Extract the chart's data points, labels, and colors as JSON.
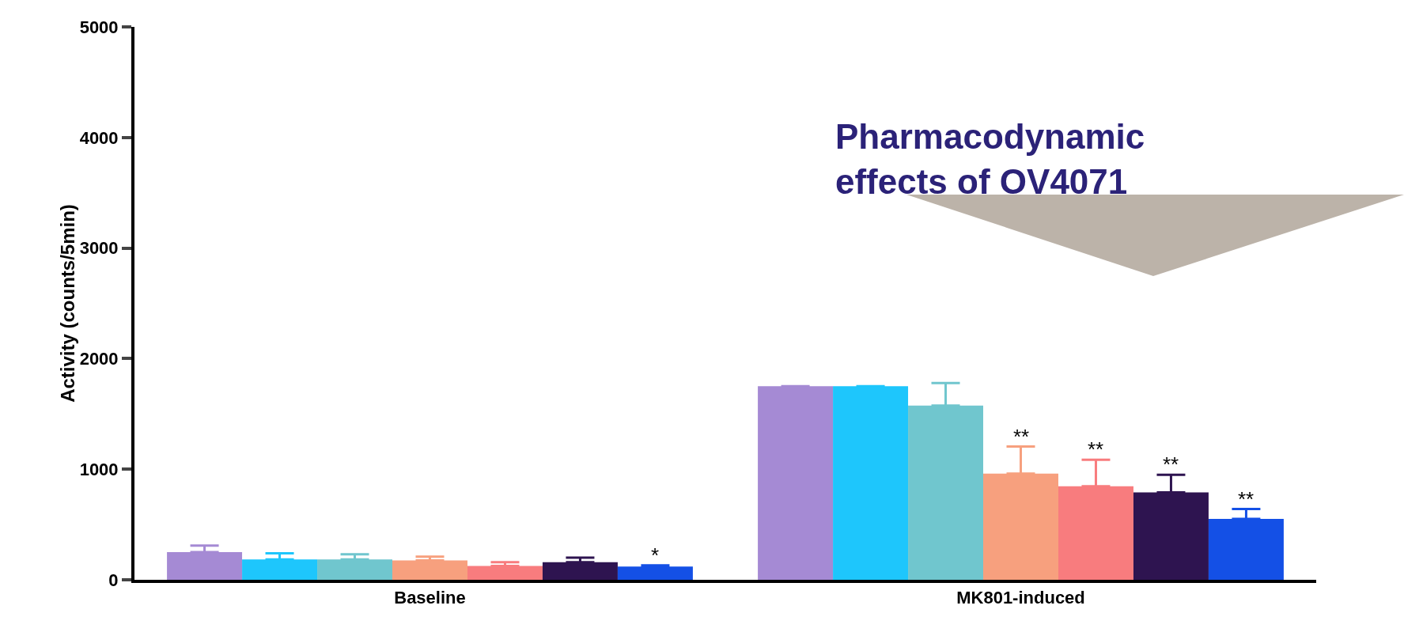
{
  "chart_data": {
    "type": "bar",
    "ylabel": "Activity (counts/5min)",
    "categories": [
      "Baseline",
      "MK801-induced"
    ],
    "series": [
      {
        "color": "#a58ad4",
        "values": [
          250,
          1750
        ],
        "errors": [
          [
            250,
            310
          ],
          null
        ]
      },
      {
        "color": "#1ec6fc",
        "values": [
          185,
          1750
        ],
        "errors": [
          [
            185,
            240
          ],
          null
        ]
      },
      {
        "color": "#70c6ce",
        "values": [
          185,
          1575
        ],
        "errors": [
          [
            185,
            230
          ],
          [
            1575,
            1780
          ]
        ]
      },
      {
        "color": "#f7a07e",
        "values": [
          175,
          960
        ],
        "errors": [
          [
            175,
            210
          ],
          [
            960,
            1205
          ]
        ],
        "value_labels": [
          null,
          "**"
        ]
      },
      {
        "color": "#f87c7e",
        "values": [
          125,
          845
        ],
        "errors": [
          [
            125,
            160
          ],
          [
            845,
            1085
          ]
        ],
        "value_labels": [
          null,
          "**"
        ]
      },
      {
        "color": "#2e1450",
        "values": [
          160,
          790
        ],
        "errors": [
          [
            160,
            200
          ],
          [
            790,
            950
          ]
        ],
        "value_labels": [
          null,
          "**"
        ]
      },
      {
        "color": "#1450e6",
        "values": [
          120,
          550
        ],
        "errors": [
          [
            120,
            130
          ],
          [
            550,
            640
          ]
        ],
        "value_labels": [
          "*",
          "**"
        ]
      }
    ],
    "ylim": [
      0,
      5000
    ],
    "yticks": [
      0,
      1000,
      2000,
      3000,
      4000,
      5000
    ],
    "grid": false,
    "annotations": [
      "Pharmacodynamic effects of OV4071"
    ]
  }
}
